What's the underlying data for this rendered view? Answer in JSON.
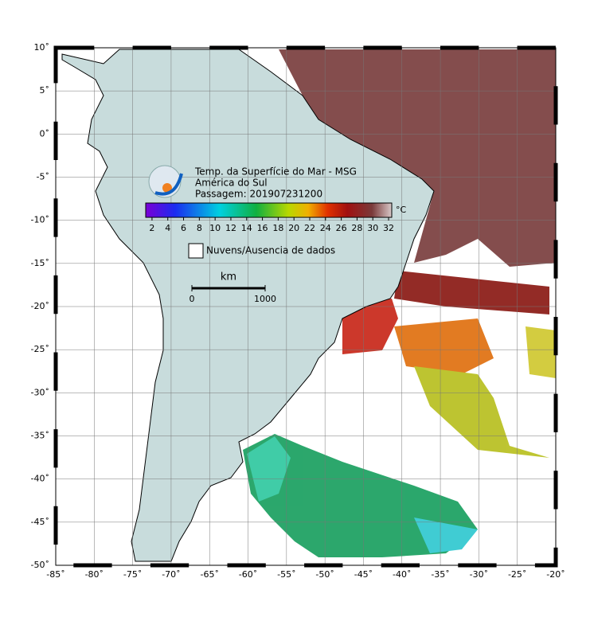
{
  "map": {
    "title_lines": [
      "Temp. da Superfície do Mar - MSG",
      "América do Sul",
      "Passagem: 201907231200"
    ],
    "xlim": [
      -85,
      -20
    ],
    "ylim": [
      -50,
      10
    ],
    "xticks": [
      {
        "value": -85,
        "label": "-85˚"
      },
      {
        "value": -80,
        "label": "-80˚"
      },
      {
        "value": -75,
        "label": "-75˚"
      },
      {
        "value": -70,
        "label": "-70˚"
      },
      {
        "value": -65,
        "label": "-65˚"
      },
      {
        "value": -60,
        "label": "-60˚"
      },
      {
        "value": -55,
        "label": "-55˚"
      },
      {
        "value": -50,
        "label": "-50˚"
      },
      {
        "value": -45,
        "label": "-45˚"
      },
      {
        "value": -40,
        "label": "-40˚"
      },
      {
        "value": -35,
        "label": "-35˚"
      },
      {
        "value": -30,
        "label": "-30˚"
      },
      {
        "value": -25,
        "label": "-25˚"
      },
      {
        "value": -20,
        "label": "-20˚"
      }
    ],
    "yticks": [
      {
        "value": 10,
        "label": "10˚"
      },
      {
        "value": 5,
        "label": "5˚"
      },
      {
        "value": 0,
        "label": "0˚"
      },
      {
        "value": -5,
        "label": "-5˚"
      },
      {
        "value": -10,
        "label": "-10˚"
      },
      {
        "value": -15,
        "label": "-15˚"
      },
      {
        "value": -20,
        "label": "-20˚"
      },
      {
        "value": -25,
        "label": "-25˚"
      },
      {
        "value": -30,
        "label": "-30˚"
      },
      {
        "value": -35,
        "label": "-35˚"
      },
      {
        "value": -40,
        "label": "-40˚"
      },
      {
        "value": -45,
        "label": "-45˚"
      },
      {
        "value": -50,
        "label": "-50˚"
      }
    ],
    "grid": true,
    "colorbar": {
      "unit": "°C",
      "lim": [
        1.2,
        32.4
      ],
      "ticks": [
        2,
        4,
        6,
        8,
        10,
        12,
        14,
        16,
        18,
        20,
        22,
        24,
        26,
        28,
        30,
        32
      ]
    },
    "legend": "Nuvens/Ausencia de dados",
    "scale": {
      "unit": "km",
      "ticks": [
        0,
        1000
      ]
    }
  }
}
